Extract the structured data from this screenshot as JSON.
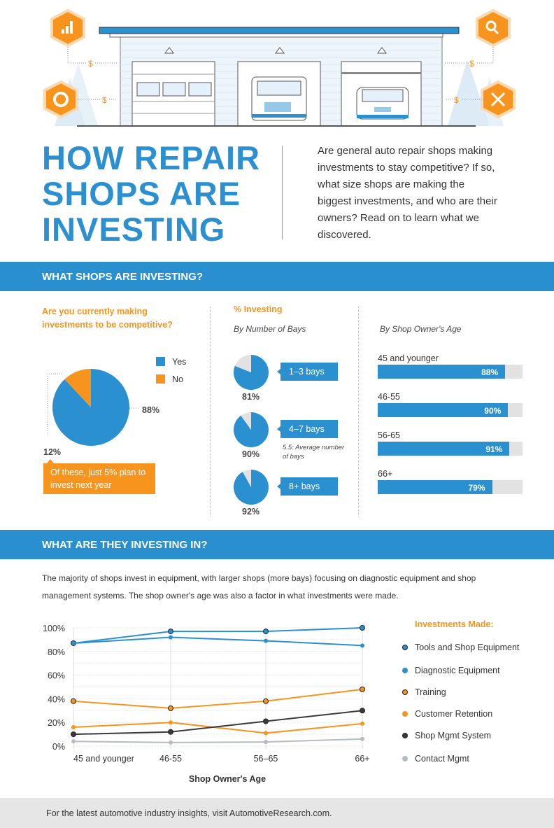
{
  "header": {
    "title_lines": [
      "HOW REPAIR",
      "SHOPS ARE",
      "INVESTING"
    ],
    "intro": "Are general auto repair shops making investments to stay competitive? If so, what size shops are making the biggest investments, and who are their owners? Read on to learn what we discovered.",
    "illustration_icons": [
      "bar-chart-icon",
      "search-icon",
      "donut-icon",
      "tools-icon"
    ],
    "dollar": "$"
  },
  "section1": {
    "heading": "WHAT SHOPS ARE INVESTING?",
    "question": "Are you currently making investments to be competitive?",
    "callout": "Of these, just 5% plan to invest next year",
    "pct_title": "% Investing",
    "bays_subtitle": "By Number of Bays",
    "age_subtitle": "By Shop Owner's Age",
    "avg_note": "5.5: Average number of bays"
  },
  "section2": {
    "heading": "WHAT ARE THEY INVESTING IN?",
    "paragraph": "The majority of shops invest in equipment, with larger shops (more bays) focusing on diagnostic equipment and shop management systems. The shop owner's age was also a factor in what investments were made.",
    "legend_title": "Investments Made:"
  },
  "footer": {
    "text": "For the latest automotive industry insights, visit AutomotiveResearch.com."
  },
  "colors": {
    "blue": "#2b90cf",
    "orange": "#f7941d",
    "grey": "#e2e2e2",
    "dark": "#3a3a3a",
    "light_grey": "#b5bcc0"
  },
  "chart_data": [
    {
      "type": "pie",
      "title": "Are you currently making investments to be competitive?",
      "slices": [
        {
          "name": "Yes",
          "value": 88,
          "label": "88%",
          "color": "#2b90cf"
        },
        {
          "name": "No",
          "value": 12,
          "label": "12%",
          "color": "#f7941d"
        }
      ],
      "legend_position": "top-right"
    },
    {
      "type": "pie",
      "title": "By Number of Bays",
      "items": [
        {
          "category": "1–3 bays",
          "value": 81,
          "label": "81%"
        },
        {
          "category": "4–7 bays",
          "value": 90,
          "label": "90%"
        },
        {
          "category": "8+ bays",
          "value": 92,
          "label": "92%"
        }
      ]
    },
    {
      "type": "bar",
      "title": "By Shop Owner's Age",
      "orientation": "horizontal",
      "categories": [
        "45 and younger",
        "46-55",
        "56-65",
        "66+"
      ],
      "values": [
        88,
        90,
        91,
        79
      ],
      "labels": [
        "88%",
        "90%",
        "91%",
        "79%"
      ],
      "xlim": [
        0,
        100
      ]
    },
    {
      "type": "line",
      "xlabel": "Shop Owner's Age",
      "ylabel": "",
      "categories": [
        "45 and younger",
        "46-55",
        "56–65",
        "66+"
      ],
      "ylim": [
        0,
        100
      ],
      "yticks": [
        "0%",
        "20%",
        "40%",
        "60%",
        "80%",
        "100%"
      ],
      "grid": true,
      "legend_position": "right",
      "series": [
        {
          "name": "Tools and Shop Equipment",
          "values": [
            87,
            97,
            97,
            100
          ],
          "color": "#2b90cf",
          "outlined": true
        },
        {
          "name": "Diagnostic Equipment",
          "values": [
            87,
            92,
            89,
            85
          ],
          "color": "#2b90cf",
          "outlined": false
        },
        {
          "name": "Training",
          "values": [
            38,
            32,
            38,
            48
          ],
          "color": "#f7941d",
          "outlined": true
        },
        {
          "name": "Customer Retention",
          "values": [
            16,
            20,
            11,
            19
          ],
          "color": "#f7941d",
          "outlined": false
        },
        {
          "name": "Shop Mgmt System",
          "values": [
            10,
            12,
            21,
            30
          ],
          "color": "#3a3a3a",
          "outlined": true
        },
        {
          "name": "Contact Mgmt",
          "values": [
            4,
            3,
            3.5,
            6
          ],
          "color": "#b5bcc0",
          "outlined": false
        }
      ]
    }
  ]
}
